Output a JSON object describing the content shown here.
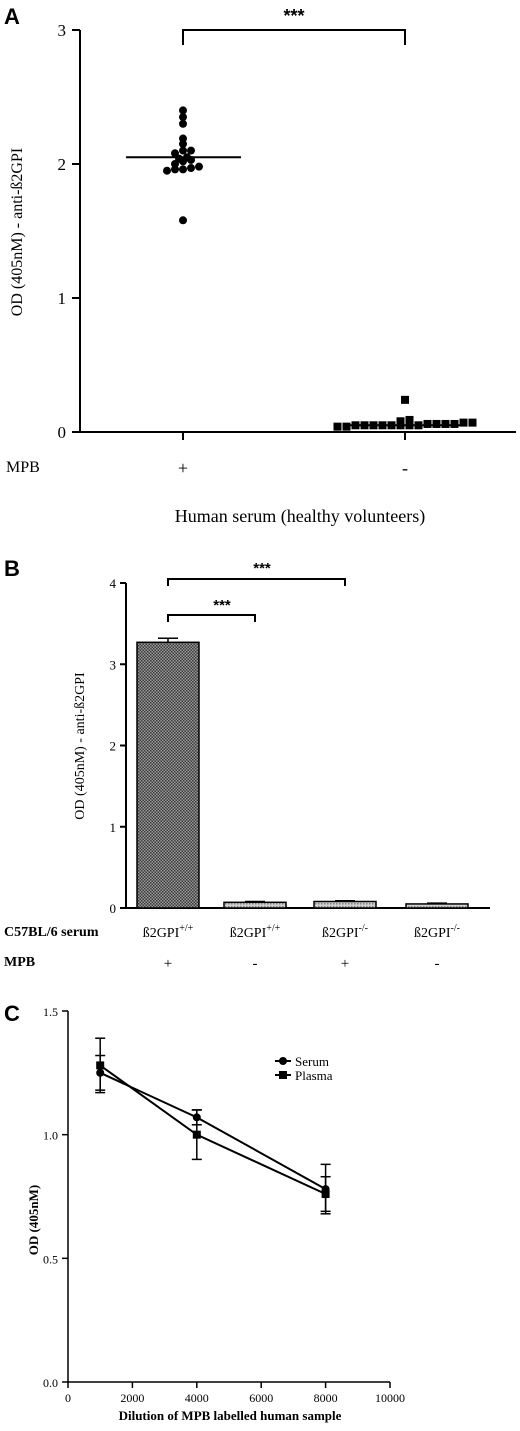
{
  "panels": {
    "A": {
      "letter": "A",
      "significance": "***",
      "row_label": "MPB",
      "xlabel": "Human serum (healthy volunteers)",
      "ylabel": "OD (405nM) - anti-ß2GPI"
    },
    "B": {
      "letter": "B",
      "significance": [
        "***",
        "***"
      ],
      "row_label_1": "C57BL/6 serum",
      "row_label_2": "MPB",
      "ylabel": "OD (405nM) - anti-ß2GPI"
    },
    "C": {
      "letter": "C",
      "xlabel": "Dilution of MPB labelled human sample",
      "ylabel": "OD (405nM)"
    }
  },
  "chart_data": [
    {
      "panel": "A",
      "type": "scatter",
      "ylim": [
        0,
        3
      ],
      "yticks": [
        "0",
        "1",
        "2",
        "3"
      ],
      "categories": [
        "+",
        "-"
      ],
      "groups": [
        {
          "category": "+",
          "marker": "circle",
          "median": 2.05,
          "values": [
            2.4,
            2.35,
            2.3,
            2.19,
            2.15,
            2.1,
            2.1,
            2.08,
            2.05,
            2.04,
            2.03,
            2.02,
            2.0,
            1.98,
            1.97,
            1.96,
            1.96,
            1.95,
            1.58
          ]
        },
        {
          "category": "-",
          "marker": "square",
          "median": 0.05,
          "values": [
            0.24,
            0.09,
            0.08,
            0.07,
            0.07,
            0.06,
            0.06,
            0.06,
            0.06,
            0.05,
            0.05,
            0.05,
            0.05,
            0.05,
            0.05,
            0.05,
            0.05,
            0.04,
            0.04
          ]
        }
      ]
    },
    {
      "panel": "B",
      "type": "bar",
      "ylim": [
        0,
        4
      ],
      "yticks": [
        "0",
        "1",
        "2",
        "3",
        "4"
      ],
      "categories": [
        {
          "base": "ß2GPI",
          "sup": "+/+",
          "mpb": "+"
        },
        {
          "base": "ß2GPI",
          "sup": "+/+",
          "mpb": "-"
        },
        {
          "base": "ß2GPI",
          "sup": "-/-",
          "mpb": "+"
        },
        {
          "base": "ß2GPI",
          "sup": "-/-",
          "mpb": "-"
        }
      ],
      "values": [
        3.27,
        0.07,
        0.08,
        0.05
      ],
      "errors": [
        0.05,
        0.01,
        0.01,
        0.01
      ],
      "brackets": [
        {
          "from": 0,
          "to": 1,
          "label": "***"
        },
        {
          "from": 0,
          "to": 2,
          "label": "***"
        }
      ]
    },
    {
      "panel": "C",
      "type": "line",
      "xlim": [
        0,
        10000
      ],
      "ylim": [
        0,
        1.5
      ],
      "xticks": [
        "0",
        "2000",
        "4000",
        "6000",
        "8000",
        "10000"
      ],
      "yticks": [
        "0.0",
        "0.5",
        "1.0",
        "1.5"
      ],
      "x": [
        1000,
        4000,
        8000
      ],
      "series": [
        {
          "name": "Serum",
          "marker": "circle",
          "values": [
            1.25,
            1.07,
            0.78
          ],
          "errors": [
            0.07,
            0.03,
            0.1
          ]
        },
        {
          "name": "Plasma",
          "marker": "square",
          "values": [
            1.28,
            1.0,
            0.76
          ],
          "errors": [
            0.11,
            0.1,
            0.07
          ]
        }
      ],
      "legend": "top-right"
    }
  ]
}
